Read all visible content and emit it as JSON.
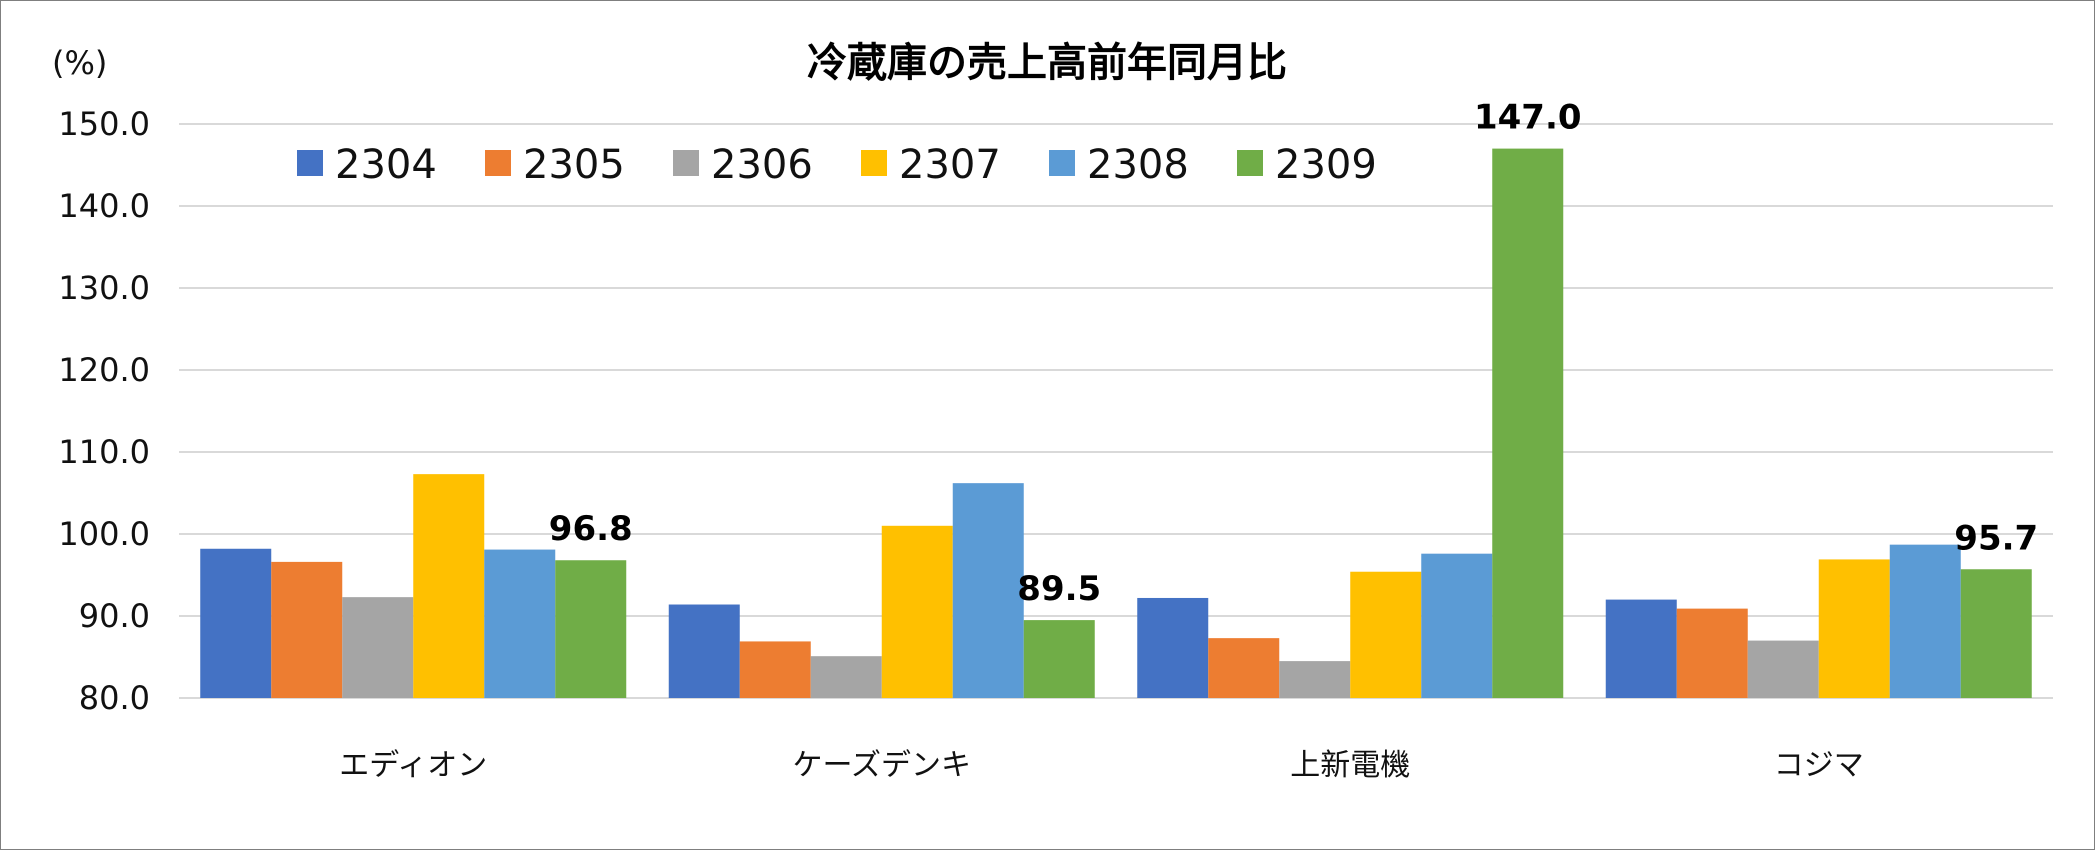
{
  "chart_data": {
    "type": "bar",
    "title": "冷蔵庫の売上高前年同月比",
    "ylabel": "(%)",
    "xlabel": "",
    "ylim": [
      80,
      150
    ],
    "yticks": [
      "80.0",
      "90.0",
      "100.0",
      "110.0",
      "120.0",
      "130.0",
      "140.0",
      "150.0"
    ],
    "grid": true,
    "legend_position": "top",
    "categories": [
      "エディオン",
      "ケーズデンキ",
      "上新電機",
      "コジマ"
    ],
    "series": [
      {
        "name": "2304",
        "color": "#4472C4",
        "values": [
          98.2,
          91.4,
          92.2,
          92.0
        ]
      },
      {
        "name": "2305",
        "color": "#ED7D31",
        "values": [
          96.6,
          86.9,
          87.3,
          90.9
        ]
      },
      {
        "name": "2306",
        "color": "#A5A5A5",
        "values": [
          92.3,
          85.1,
          84.5,
          87.0
        ]
      },
      {
        "name": "2307",
        "color": "#FFC000",
        "values": [
          107.3,
          101.0,
          95.4,
          96.9
        ]
      },
      {
        "name": "2308",
        "color": "#5B9BD5",
        "values": [
          98.1,
          106.2,
          97.6,
          98.7
        ]
      },
      {
        "name": "2309",
        "color": "#70AD47",
        "values": [
          96.8,
          89.5,
          147.0,
          95.7
        ]
      }
    ],
    "data_labels": {
      "series": "2309",
      "labels": [
        "96.8",
        "89.5",
        "147.0",
        "95.7"
      ]
    }
  }
}
